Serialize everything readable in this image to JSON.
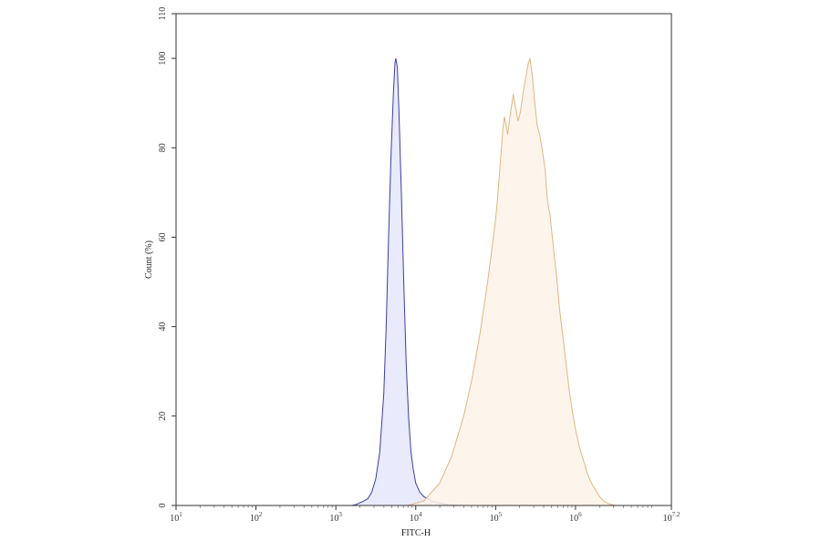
{
  "chart_data": {
    "type": "area",
    "title": "",
    "xlabel": "FITC-H",
    "ylabel": "Count (%)",
    "x_scale": "log10",
    "xlim": [
      1,
      7.2
    ],
    "ylim": [
      0,
      110
    ],
    "grid": false,
    "x_ticks": [
      {
        "value": 1,
        "base": "10",
        "exp": "1"
      },
      {
        "value": 2,
        "base": "10",
        "exp": "2"
      },
      {
        "value": 3,
        "base": "10",
        "exp": "3"
      },
      {
        "value": 4,
        "base": "10",
        "exp": "4"
      },
      {
        "value": 5,
        "base": "10",
        "exp": "5"
      },
      {
        "value": 6,
        "base": "10",
        "exp": "6"
      },
      {
        "value": 7.2,
        "base": "10",
        "exp": "7.2"
      }
    ],
    "y_ticks": [
      {
        "value": 0,
        "label": "0"
      },
      {
        "value": 20,
        "label": "20"
      },
      {
        "value": 40,
        "label": "40"
      },
      {
        "value": 60,
        "label": "60"
      },
      {
        "value": 80,
        "label": "80"
      },
      {
        "value": 100,
        "label": "100"
      },
      {
        "value": 110,
        "label": "110"
      }
    ],
    "series": [
      {
        "stroke": "#3b3f9e",
        "fill": "#e5e6fa",
        "points": [
          [
            2.0,
            0
          ],
          [
            3.2,
            0
          ],
          [
            3.25,
            0.2
          ],
          [
            3.3,
            0.6
          ],
          [
            3.35,
            1.0
          ],
          [
            3.4,
            1.5
          ],
          [
            3.45,
            3
          ],
          [
            3.5,
            6
          ],
          [
            3.55,
            12
          ],
          [
            3.6,
            25
          ],
          [
            3.63,
            40
          ],
          [
            3.66,
            60
          ],
          [
            3.69,
            78
          ],
          [
            3.72,
            92
          ],
          [
            3.74,
            99
          ],
          [
            3.75,
            100
          ],
          [
            3.77,
            98
          ],
          [
            3.79,
            88
          ],
          [
            3.82,
            70
          ],
          [
            3.85,
            50
          ],
          [
            3.88,
            32
          ],
          [
            3.91,
            20
          ],
          [
            3.94,
            12
          ],
          [
            3.97,
            8
          ],
          [
            4.0,
            5
          ],
          [
            4.05,
            3
          ],
          [
            4.1,
            2
          ],
          [
            4.2,
            1
          ],
          [
            4.3,
            0.5
          ],
          [
            4.4,
            0.2
          ],
          [
            4.6,
            0
          ],
          [
            7.2,
            0
          ]
        ]
      },
      {
        "stroke": "#e0b582",
        "fill": "#fdf3e8",
        "points": [
          [
            3.0,
            0
          ],
          [
            3.9,
            0
          ],
          [
            4.0,
            0.5
          ],
          [
            4.1,
            1
          ],
          [
            4.15,
            2
          ],
          [
            4.2,
            3
          ],
          [
            4.25,
            4
          ],
          [
            4.3,
            5
          ],
          [
            4.35,
            7
          ],
          [
            4.4,
            9
          ],
          [
            4.45,
            11
          ],
          [
            4.5,
            14
          ],
          [
            4.55,
            17
          ],
          [
            4.6,
            20
          ],
          [
            4.65,
            24
          ],
          [
            4.7,
            28
          ],
          [
            4.75,
            33
          ],
          [
            4.8,
            38
          ],
          [
            4.85,
            44
          ],
          [
            4.9,
            50
          ],
          [
            4.95,
            57
          ],
          [
            5.0,
            64
          ],
          [
            5.03,
            70
          ],
          [
            5.06,
            77
          ],
          [
            5.09,
            84
          ],
          [
            5.11,
            87
          ],
          [
            5.13,
            85
          ],
          [
            5.15,
            83
          ],
          [
            5.18,
            87
          ],
          [
            5.22,
            92
          ],
          [
            5.25,
            89
          ],
          [
            5.28,
            86
          ],
          [
            5.31,
            88
          ],
          [
            5.35,
            93
          ],
          [
            5.38,
            96
          ],
          [
            5.41,
            99
          ],
          [
            5.43,
            100
          ],
          [
            5.46,
            96
          ],
          [
            5.49,
            90
          ],
          [
            5.52,
            85
          ],
          [
            5.55,
            83
          ],
          [
            5.58,
            80
          ],
          [
            5.62,
            75
          ],
          [
            5.65,
            68
          ],
          [
            5.68,
            65
          ],
          [
            5.71,
            60
          ],
          [
            5.74,
            55
          ],
          [
            5.77,
            50
          ],
          [
            5.8,
            44
          ],
          [
            5.84,
            38
          ],
          [
            5.88,
            32
          ],
          [
            5.92,
            26
          ],
          [
            5.96,
            21
          ],
          [
            6.0,
            17
          ],
          [
            6.05,
            13
          ],
          [
            6.1,
            10
          ],
          [
            6.15,
            7
          ],
          [
            6.2,
            5
          ],
          [
            6.25,
            3.5
          ],
          [
            6.3,
            2
          ],
          [
            6.35,
            1
          ],
          [
            6.4,
            0.5
          ],
          [
            6.45,
            0.2
          ],
          [
            6.5,
            0
          ],
          [
            7.2,
            0
          ]
        ]
      }
    ]
  }
}
